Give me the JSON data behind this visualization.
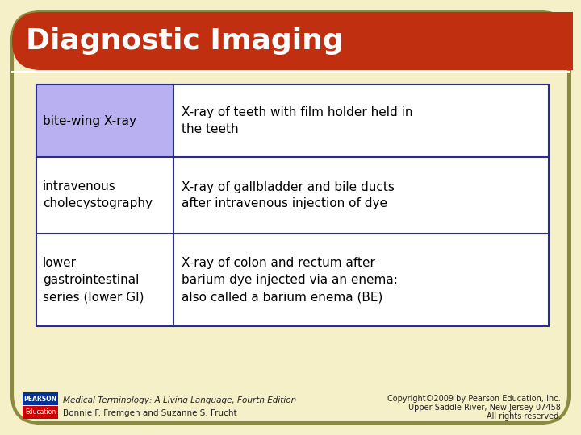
{
  "title": "Diagnostic Imaging",
  "bg_color": "#f5f0c8",
  "header_color": "#c03010",
  "header_text_color": "#ffffff",
  "table_border_color": "#2c2c8c",
  "scroll_border_color": "#8b8b40",
  "row_right_bg": "#ffffff",
  "rows": [
    {
      "term": "bite-wing X-ray",
      "definition": "X-ray of teeth with film holder held in\nthe teeth",
      "term_bg": "#b8b0f0"
    },
    {
      "term": "intravenous\ncholecystography",
      "definition": "X-ray of gallbladder and bile ducts\nafter intravenous injection of dye",
      "term_bg": "#ffffff"
    },
    {
      "term": "lower\ngastrointestinal\nseries (lower GI)",
      "definition": "X-ray of colon and rectum after\nbarium dye injected via an enema;\nalso called a barium enema (BE)",
      "term_bg": "#ffffff"
    }
  ],
  "footer_left_line1": "Medical Terminology: A Living Language, Fourth Edition",
  "footer_left_line2": "Bonnie F. Fremgen and Suzanne S. Frucht",
  "footer_right_line1": "Copyright©2009 by Pearson Education, Inc.",
  "footer_right_line2": "Upper Saddle River, New Jersey 07458",
  "footer_right_line3": "All rights reserved.",
  "pearson_box_color1": "#003399",
  "pearson_box_color2": "#cc0000"
}
